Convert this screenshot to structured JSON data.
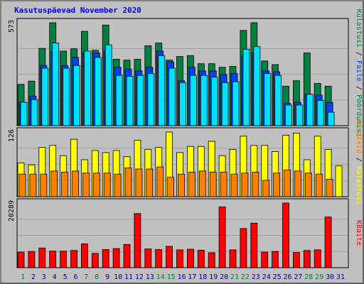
{
  "title": "Kasutuspäevad November 2020",
  "colors": {
    "visits": "#008040",
    "files": "#0040ff",
    "requests": "#00e0ff",
    "sites": "#ffff00",
    "hosts": "#ff8000",
    "kbytes": "#ff0000",
    "day_weekday": "#000080",
    "day_weekend": "#008040"
  },
  "chart_data": [
    {
      "type": "bar",
      "title": "",
      "y_max_label": "573",
      "ylim": [
        0,
        573
      ],
      "side_labels": [
        "Külastusi",
        "Faile",
        "Pöördumisi"
      ],
      "categories": [
        "1",
        "2",
        "3",
        "4",
        "5",
        "6",
        "7",
        "8",
        "9",
        "10",
        "11",
        "12",
        "13",
        "14",
        "15",
        "16",
        "17",
        "18",
        "19",
        "20",
        "21",
        "22",
        "23",
        "24",
        "25",
        "26",
        "27",
        "28",
        "29",
        "30",
        "31"
      ],
      "series": [
        {
          "name": "Külastusi",
          "color": "#008040",
          "values": [
            230,
            248,
            430,
            573,
            415,
            428,
            525,
            420,
            560,
            370,
            365,
            370,
            445,
            460,
            365,
            385,
            390,
            345,
            345,
            325,
            330,
            530,
            573,
            360,
            340,
            220,
            250,
            405,
            235,
            220,
            0
          ]
        },
        {
          "name": "Faile",
          "color": "#0040ff",
          "values": [
            130,
            165,
            335,
            410,
            335,
            380,
            405,
            405,
            415,
            325,
            315,
            305,
            325,
            415,
            355,
            250,
            325,
            305,
            305,
            285,
            290,
            385,
            405,
            305,
            300,
            125,
            130,
            175,
            170,
            130,
            0
          ]
        },
        {
          "name": "Pöördumisi",
          "color": "#00e0ff",
          "values": [
            130,
            145,
            320,
            460,
            320,
            335,
            415,
            380,
            450,
            280,
            275,
            280,
            290,
            390,
            320,
            240,
            280,
            280,
            270,
            240,
            245,
            425,
            440,
            290,
            280,
            115,
            115,
            175,
            140,
            75,
            0
          ]
        }
      ]
    },
    {
      "type": "bar",
      "title": "",
      "y_max_label": "126",
      "ylim": [
        0,
        126
      ],
      "side_labels": [
        "Arvuteid",
        "Külastusi"
      ],
      "categories": [
        "1",
        "2",
        "3",
        "4",
        "5",
        "6",
        "7",
        "8",
        "9",
        "10",
        "11",
        "12",
        "13",
        "14",
        "15",
        "16",
        "17",
        "18",
        "19",
        "20",
        "21",
        "22",
        "23",
        "24",
        "25",
        "26",
        "27",
        "28",
        "29",
        "30",
        "31"
      ],
      "series": [
        {
          "name": "Külastusi",
          "color": "#ffff00",
          "values": [
            66,
            62,
            96,
            100,
            80,
            112,
            72,
            90,
            86,
            90,
            78,
            110,
            92,
            96,
            126,
            86,
            98,
            98,
            108,
            80,
            92,
            118,
            100,
            100,
            88,
            120,
            124,
            72,
            118,
            92,
            60
          ]
        },
        {
          "name": "Arvuteid",
          "color": "#ff8000",
          "values": [
            44,
            44,
            44,
            50,
            48,
            50,
            46,
            46,
            46,
            44,
            56,
            54,
            54,
            58,
            38,
            44,
            48,
            50,
            48,
            48,
            44,
            46,
            48,
            32,
            46,
            52,
            50,
            46,
            44,
            34,
            0
          ]
        }
      ]
    },
    {
      "type": "bar",
      "title": "",
      "y_max_label": "20289",
      "ylim": [
        0,
        20289
      ],
      "side_labels": [
        "KBaite"
      ],
      "categories": [
        "1",
        "2",
        "3",
        "4",
        "5",
        "6",
        "7",
        "8",
        "9",
        "10",
        "11",
        "12",
        "13",
        "14",
        "15",
        "16",
        "17",
        "18",
        "19",
        "20",
        "21",
        "22",
        "23",
        "24",
        "25",
        "26",
        "27",
        "28",
        "29",
        "30",
        "31"
      ],
      "series": [
        {
          "name": "KBaite",
          "color": "#ff0000",
          "values": [
            4900,
            5100,
            6200,
            5200,
            5200,
            5400,
            7500,
            4500,
            5700,
            6000,
            7300,
            17000,
            5900,
            5700,
            6700,
            5600,
            5800,
            5500,
            4700,
            19100,
            5600,
            12300,
            14000,
            4900,
            5100,
            20289,
            4800,
            5400,
            5600,
            15900,
            0
          ]
        }
      ]
    }
  ],
  "x_labels": [
    {
      "t": "1",
      "w": true
    },
    {
      "t": "2",
      "w": false
    },
    {
      "t": "3",
      "w": false
    },
    {
      "t": "4",
      "w": false
    },
    {
      "t": "5",
      "w": false
    },
    {
      "t": "6",
      "w": false
    },
    {
      "t": "7",
      "w": true
    },
    {
      "t": "8",
      "w": true
    },
    {
      "t": "9",
      "w": false
    },
    {
      "t": "10",
      "w": false
    },
    {
      "t": "11",
      "w": false
    },
    {
      "t": "12",
      "w": false
    },
    {
      "t": "13",
      "w": false
    },
    {
      "t": "14",
      "w": true
    },
    {
      "t": "15",
      "w": true
    },
    {
      "t": "16",
      "w": false
    },
    {
      "t": "17",
      "w": false
    },
    {
      "t": "18",
      "w": false
    },
    {
      "t": "19",
      "w": false
    },
    {
      "t": "20",
      "w": false
    },
    {
      "t": "21",
      "w": true
    },
    {
      "t": "22",
      "w": true
    },
    {
      "t": "23",
      "w": false
    },
    {
      "t": "24",
      "w": false
    },
    {
      "t": "25",
      "w": false
    },
    {
      "t": "26",
      "w": false
    },
    {
      "t": "27",
      "w": false
    },
    {
      "t": "28",
      "w": true
    },
    {
      "t": "29",
      "w": true
    },
    {
      "t": "30",
      "w": false
    },
    {
      "t": "31",
      "w": false
    }
  ]
}
